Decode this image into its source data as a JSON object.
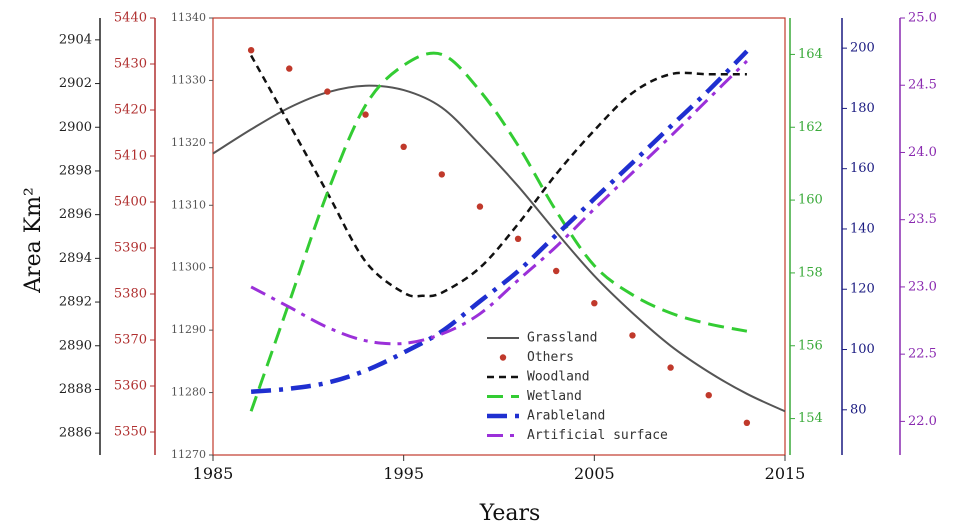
{
  "chart_data": {
    "type": "line",
    "title": "",
    "xlabel": "Years",
    "ylabel": "Area Km²",
    "xlim": [
      1985,
      2015
    ],
    "x_ticks": [
      "1985",
      "1995",
      "2005",
      "2015"
    ],
    "grid": false,
    "legend_position": "bottom-right",
    "axes": [
      {
        "id": "black_left",
        "color": "#222222",
        "range": [
          2885,
          2905
        ],
        "ticks": [
          "2886",
          "2888",
          "2890",
          "2892",
          "2894",
          "2896",
          "2898",
          "2900",
          "2902",
          "2904"
        ]
      },
      {
        "id": "red_left",
        "color": "#b03030",
        "range": [
          5345,
          5440
        ],
        "ticks": [
          "5350",
          "5360",
          "5370",
          "5380",
          "5390",
          "5400",
          "5410",
          "5420",
          "5430",
          "5440"
        ]
      },
      {
        "id": "woodland_left",
        "color": "#555555",
        "range": [
          11270,
          11340
        ],
        "ticks": [
          "11270",
          "11280",
          "11290",
          "11300",
          "11310",
          "11320",
          "11330",
          "11340"
        ]
      },
      {
        "id": "green_right",
        "color": "#3aaa3a",
        "range": [
          153,
          165
        ],
        "ticks": [
          "154",
          "156",
          "158",
          "160",
          "162",
          "164"
        ]
      },
      {
        "id": "blue_right",
        "color": "#1a1a80",
        "range": [
          65,
          210
        ],
        "ticks": [
          "80",
          "100",
          "120",
          "140",
          "160",
          "180",
          "200"
        ]
      },
      {
        "id": "purple_right",
        "color": "#8a2ab0",
        "range": [
          21.75,
          25.0
        ],
        "ticks": [
          "22.0",
          "22.5",
          "23.0",
          "23.5",
          "24.0",
          "24.5",
          "25.0"
        ]
      }
    ],
    "series": [
      {
        "name": "Grassland",
        "axis": "black_left",
        "style": "solid",
        "color": "#555555",
        "x": [
          1985,
          1987,
          1989,
          1991,
          1993,
          1995,
          1997,
          1999,
          2001,
          2003,
          2005,
          2007,
          2009,
          2011,
          2013,
          2015
        ],
        "y": [
          2898.8,
          2899.9,
          2900.9,
          2901.6,
          2901.9,
          2901.7,
          2900.9,
          2899.2,
          2897.3,
          2895.2,
          2893.2,
          2891.5,
          2890.0,
          2888.8,
          2887.8,
          2887.0
        ]
      },
      {
        "name": "Others",
        "axis": "red_left",
        "style": "dots",
        "color": "#c0392b",
        "x": [
          1987,
          1989,
          1991,
          1993,
          1995,
          1997,
          1999,
          2001,
          2003,
          2005,
          2007,
          2009,
          2011,
          2013
        ],
        "y": [
          5433,
          5429,
          5424,
          5419,
          5412,
          5406,
          5399,
          5392,
          5385,
          5378,
          5371,
          5364,
          5358,
          5352
        ]
      },
      {
        "name": "Woodland",
        "axis": "woodland_left",
        "style": "dashed",
        "color": "#111111",
        "x": [
          1987,
          1989,
          1991,
          1993,
          1995,
          1996,
          1997,
          1999,
          2001,
          2003,
          2005,
          2007,
          2009,
          2011,
          2013
        ],
        "y": [
          11334,
          11323,
          11312,
          11301,
          11296,
          11295.5,
          11296,
          11300,
          11307,
          11315,
          11322,
          11328,
          11331,
          11331,
          11331
        ]
      },
      {
        "name": "Wetland",
        "axis": "green_right",
        "style": "longdash",
        "color": "#33cc33",
        "x": [
          1987,
          1989,
          1991,
          1993,
          1995,
          1997,
          1999,
          2001,
          2003,
          2005,
          2007,
          2009,
          2011,
          2013
        ],
        "y": [
          154.2,
          157.2,
          160.2,
          162.6,
          163.7,
          164.0,
          163.0,
          161.5,
          159.7,
          158.2,
          157.4,
          156.9,
          156.6,
          156.4
        ]
      },
      {
        "name": "Arableland",
        "axis": "blue_right",
        "style": "dashdot-thick",
        "color": "#1f2fd0",
        "x": [
          1987,
          1989,
          1991,
          1993,
          1995,
          1997,
          1999,
          2001,
          2003,
          2005,
          2007,
          2009,
          2011,
          2013
        ],
        "y": [
          86,
          87,
          89,
          93,
          99,
          106,
          116,
          126,
          138,
          150,
          162,
          174,
          186,
          199
        ]
      },
      {
        "name": "Artificial surface",
        "axis": "purple_right",
        "style": "dashdot",
        "color": "#9b30d9",
        "x": [
          1987,
          1989,
          1991,
          1993,
          1995,
          1997,
          1999,
          2001,
          2003,
          2005,
          2007,
          2009,
          2011,
          2013
        ],
        "y": [
          23.0,
          22.85,
          22.7,
          22.6,
          22.58,
          22.65,
          22.8,
          23.05,
          23.3,
          23.58,
          23.85,
          24.12,
          24.4,
          24.68
        ]
      }
    ]
  }
}
